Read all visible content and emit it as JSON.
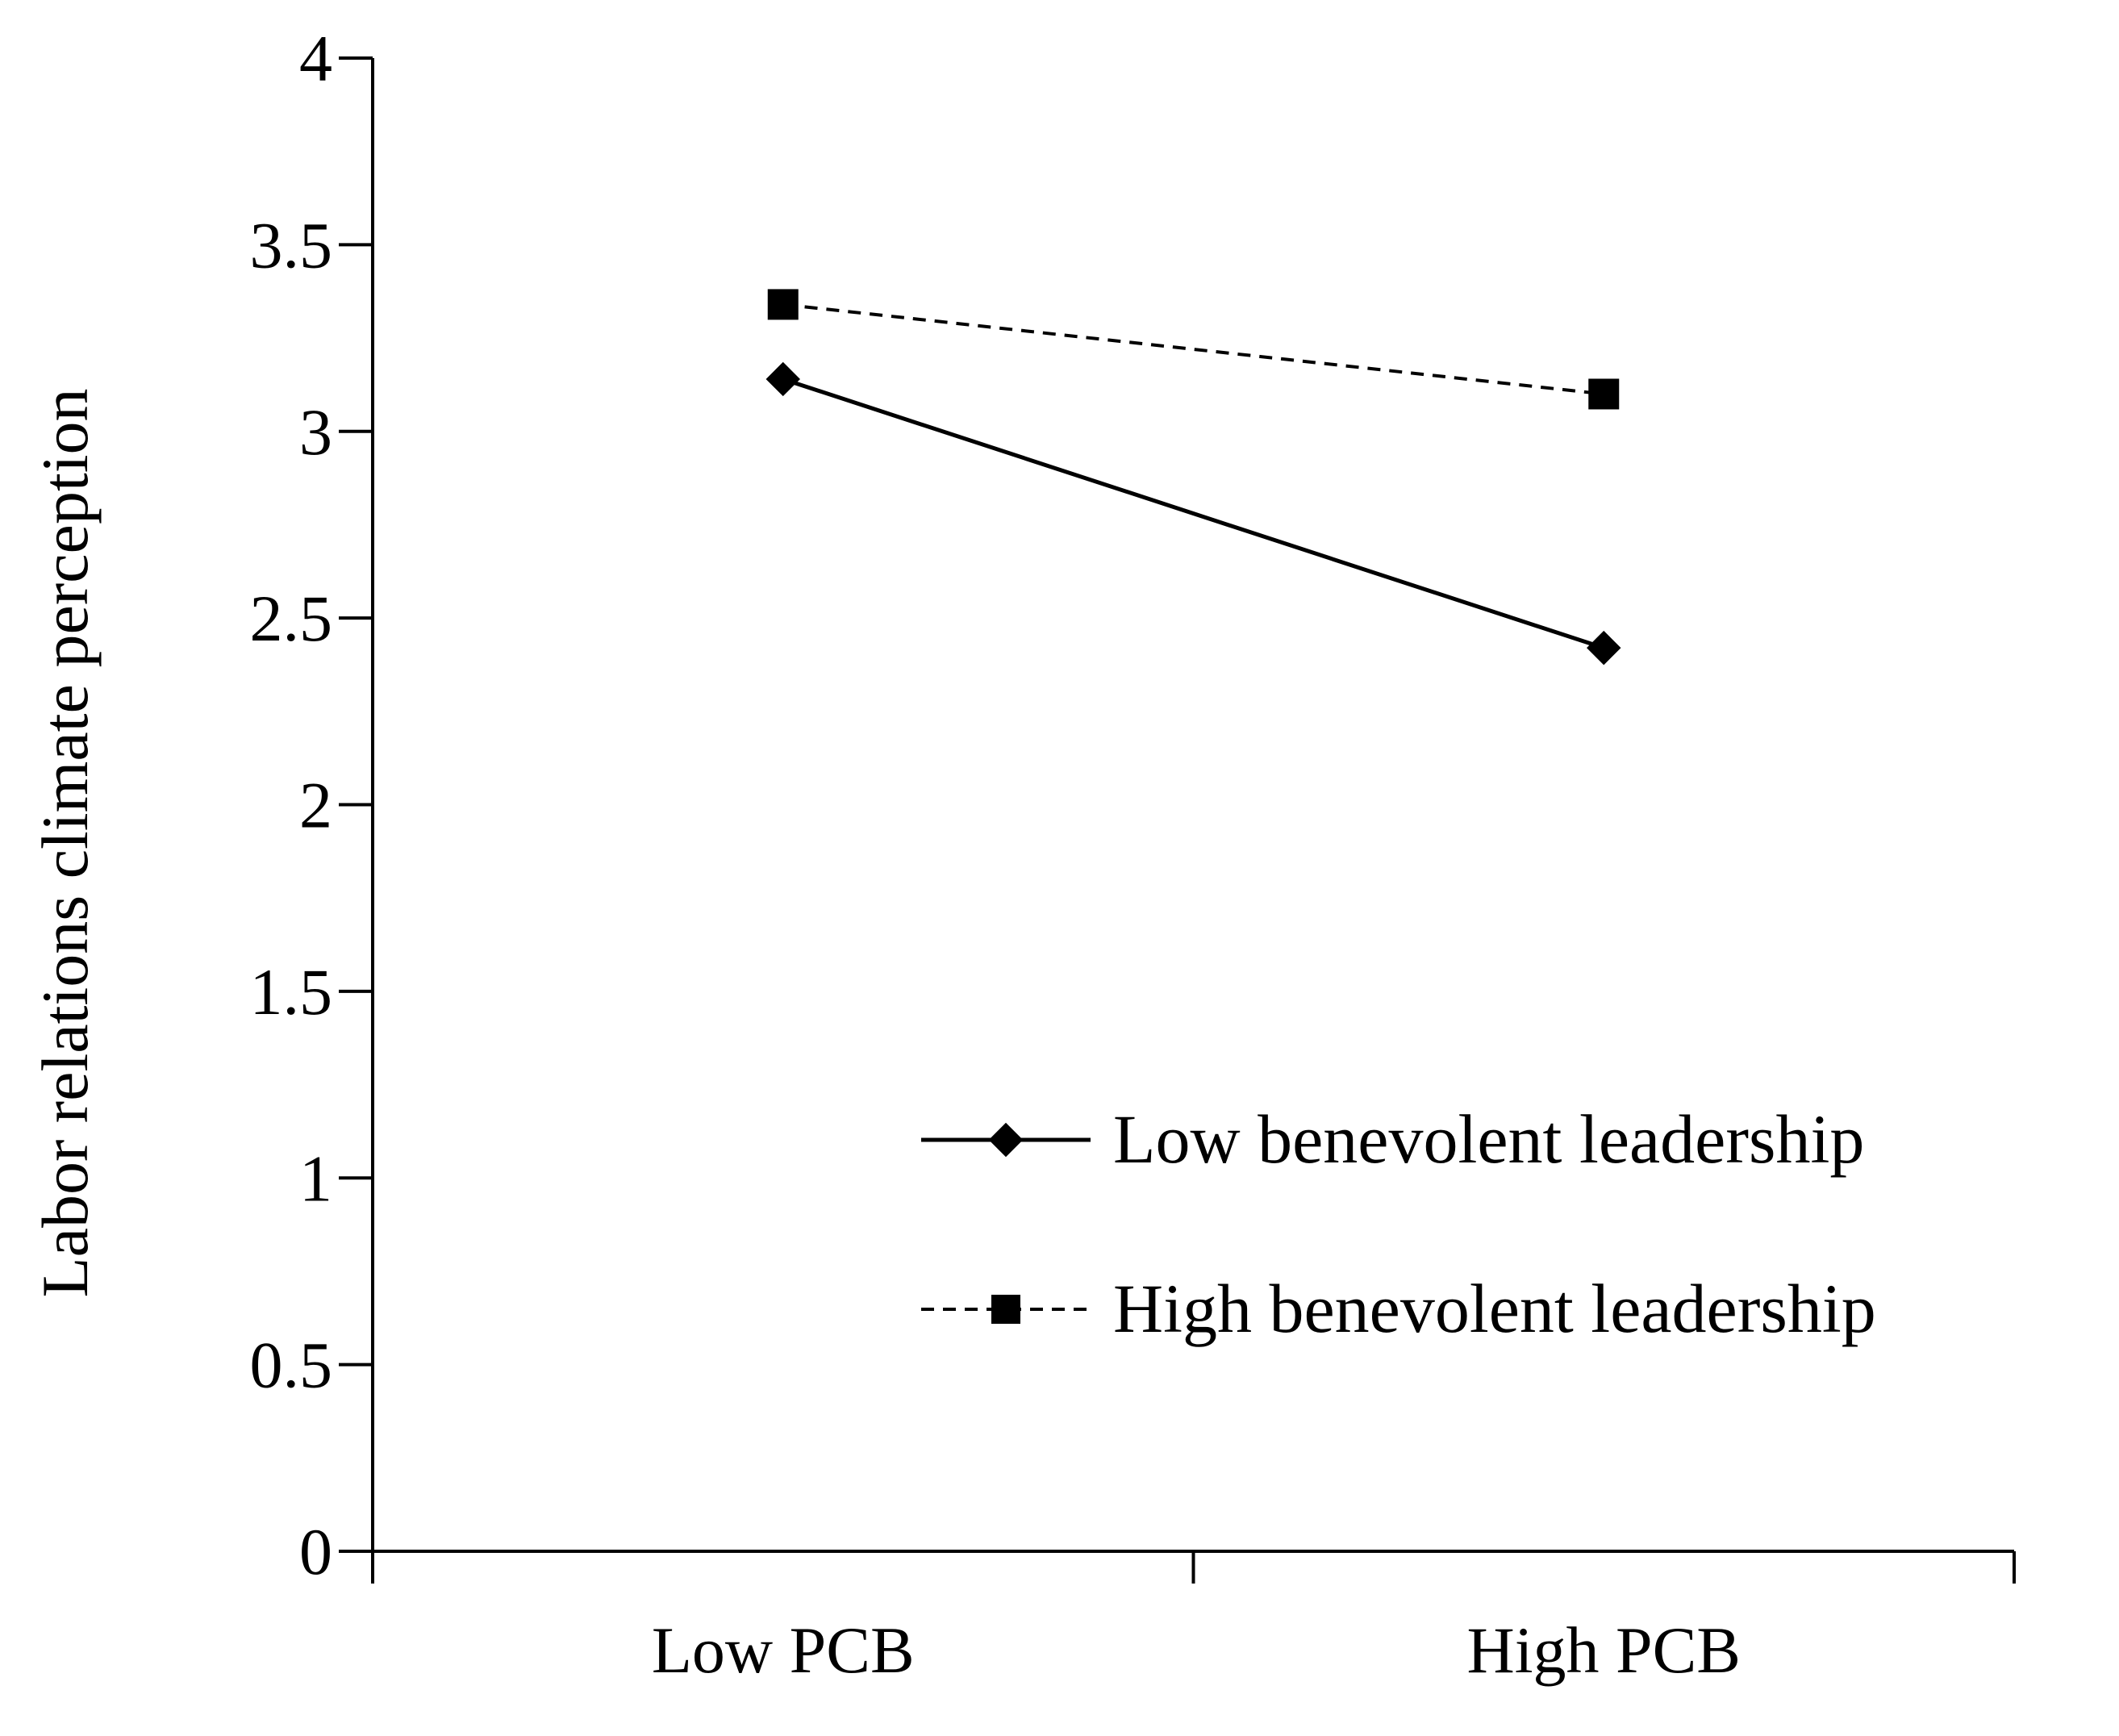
{
  "chart_data": {
    "type": "line",
    "title": "",
    "xlabel": "",
    "ylabel": "Labor relations climate perception",
    "categories": [
      "Low PCB",
      "High PCB"
    ],
    "ylim": [
      0,
      4
    ],
    "yticks": [
      "0",
      "0.5",
      "1",
      "1.5",
      "2",
      "2.5",
      "3",
      "3.5",
      "4"
    ],
    "grid": false,
    "legend_position": "bottom-right",
    "series": [
      {
        "name": "Low benevolent leadership",
        "values": [
          3.14,
          2.42
        ],
        "line_style": "solid",
        "marker": "diamond",
        "color": "#000000"
      },
      {
        "name": "High benevolent leadership",
        "values": [
          3.34,
          3.1
        ],
        "line_style": "dashed",
        "marker": "square",
        "color": "#000000"
      }
    ]
  }
}
